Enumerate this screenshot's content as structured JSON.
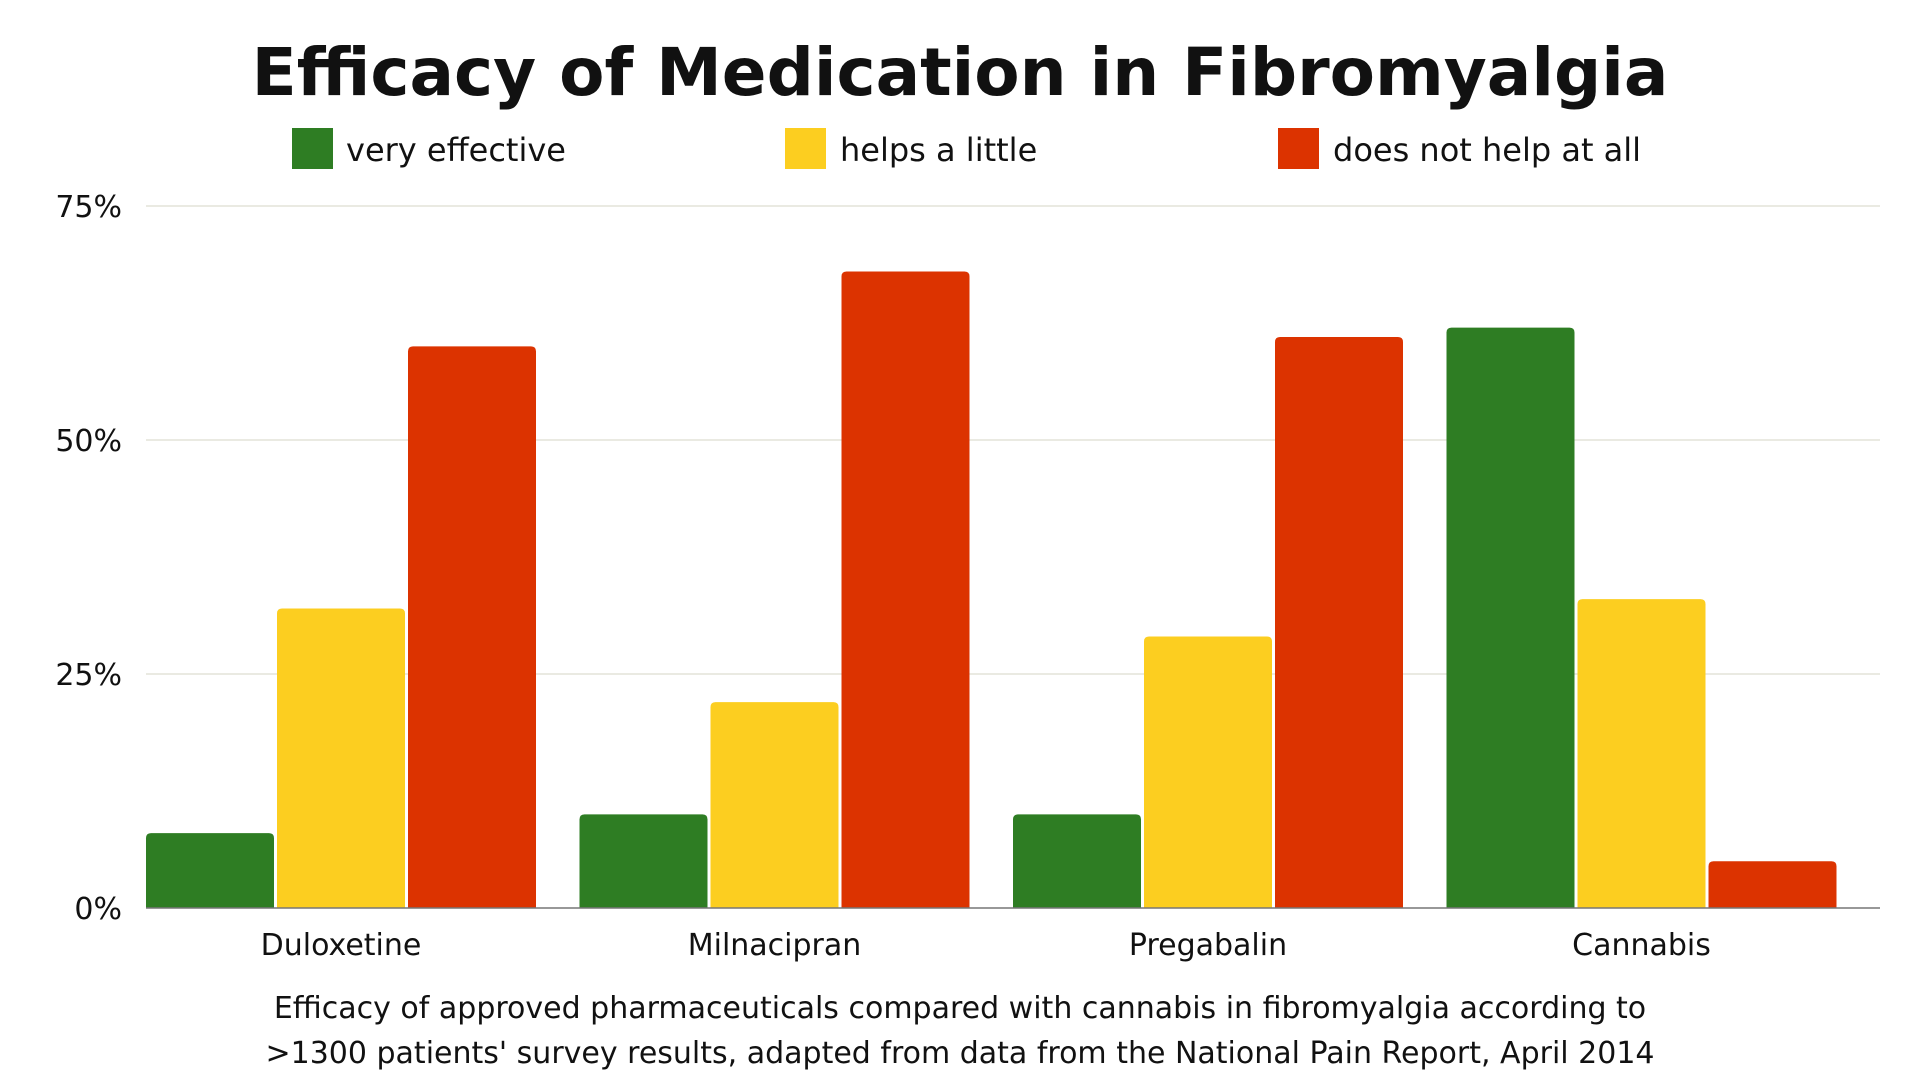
{
  "chart_data": {
    "type": "bar",
    "title": "Efficacy of Medication in Fibromyalgia",
    "categories": [
      "Duloxetine",
      "Milnacipran",
      "Pregabalin",
      "Cannabis"
    ],
    "series": [
      {
        "name": "very effective",
        "color": "#2e7d23",
        "values": [
          8,
          10,
          10,
          62
        ]
      },
      {
        "name": "helps a little",
        "color": "#fcce20",
        "values": [
          32,
          22,
          29,
          33
        ]
      },
      {
        "name": "does not help at all",
        "color": "#dc3300",
        "values": [
          60,
          68,
          61,
          5
        ]
      }
    ],
    "ylim": [
      0,
      75
    ],
    "yticks": [
      0,
      25,
      50,
      75
    ],
    "ytick_labels": [
      "0%",
      "25%",
      "50%",
      "75%"
    ],
    "xlabel": "",
    "ylabel": "",
    "grid": true,
    "legend_position": "top",
    "caption": [
      "Efficacy of approved pharmaceuticals compared with cannabis in fibromyalgia according to",
      ">1300 patients' survey results, adapted from data from the National Pain Report, April 2014"
    ]
  }
}
